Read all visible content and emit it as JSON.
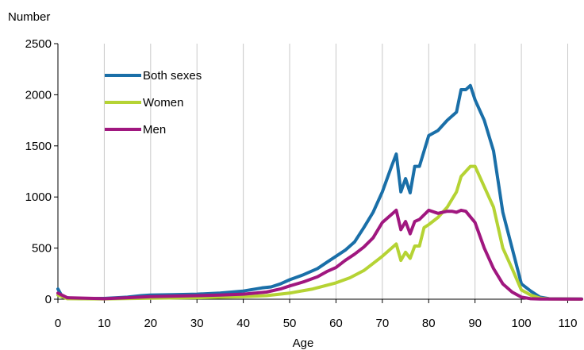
{
  "chart_data": {
    "type": "line",
    "title": "",
    "ylabel": "Number",
    "xlabel": "Age",
    "xlim": [
      0,
      113
    ],
    "ylim": [
      0,
      2500
    ],
    "x_ticks": [
      0,
      10,
      20,
      30,
      40,
      50,
      60,
      70,
      80,
      90,
      100,
      110
    ],
    "y_ticks": [
      0,
      500,
      1000,
      1500,
      2000,
      2500
    ],
    "grid": "vertical",
    "legend_position": "top-left",
    "series": [
      {
        "name": "Both sexes",
        "color": "#1a6fa8",
        "points": [
          [
            0,
            100
          ],
          [
            1,
            20
          ],
          [
            3,
            10
          ],
          [
            5,
            5
          ],
          [
            10,
            8
          ],
          [
            15,
            20
          ],
          [
            18,
            35
          ],
          [
            20,
            40
          ],
          [
            25,
            45
          ],
          [
            30,
            50
          ],
          [
            35,
            60
          ],
          [
            40,
            80
          ],
          [
            44,
            110
          ],
          [
            46,
            120
          ],
          [
            48,
            150
          ],
          [
            50,
            190
          ],
          [
            53,
            240
          ],
          [
            56,
            300
          ],
          [
            58,
            360
          ],
          [
            60,
            420
          ],
          [
            62,
            480
          ],
          [
            64,
            560
          ],
          [
            66,
            700
          ],
          [
            68,
            850
          ],
          [
            70,
            1050
          ],
          [
            72,
            1300
          ],
          [
            73,
            1420
          ],
          [
            74,
            1050
          ],
          [
            75,
            1180
          ],
          [
            76,
            1040
          ],
          [
            77,
            1300
          ],
          [
            78,
            1300
          ],
          [
            80,
            1600
          ],
          [
            82,
            1650
          ],
          [
            84,
            1750
          ],
          [
            86,
            1830
          ],
          [
            87,
            2050
          ],
          [
            88,
            2050
          ],
          [
            89,
            2090
          ],
          [
            90,
            1950
          ],
          [
            92,
            1750
          ],
          [
            94,
            1450
          ],
          [
            96,
            850
          ],
          [
            98,
            500
          ],
          [
            100,
            150
          ],
          [
            102,
            80
          ],
          [
            104,
            20
          ],
          [
            106,
            5
          ],
          [
            113,
            2
          ]
        ]
      },
      {
        "name": "Women",
        "color": "#b5d334",
        "points": [
          [
            0,
            40
          ],
          [
            2,
            5
          ],
          [
            10,
            3
          ],
          [
            20,
            10
          ],
          [
            30,
            15
          ],
          [
            40,
            25
          ],
          [
            45,
            35
          ],
          [
            50,
            60
          ],
          [
            55,
            100
          ],
          [
            60,
            160
          ],
          [
            63,
            210
          ],
          [
            66,
            280
          ],
          [
            68,
            350
          ],
          [
            70,
            420
          ],
          [
            72,
            500
          ],
          [
            73,
            540
          ],
          [
            74,
            380
          ],
          [
            75,
            460
          ],
          [
            76,
            400
          ],
          [
            77,
            520
          ],
          [
            78,
            520
          ],
          [
            79,
            700
          ],
          [
            80,
            730
          ],
          [
            82,
            800
          ],
          [
            84,
            900
          ],
          [
            86,
            1050
          ],
          [
            87,
            1200
          ],
          [
            89,
            1300
          ],
          [
            90,
            1300
          ],
          [
            92,
            1100
          ],
          [
            94,
            900
          ],
          [
            96,
            500
          ],
          [
            98,
            300
          ],
          [
            100,
            90
          ],
          [
            102,
            40
          ],
          [
            104,
            10
          ],
          [
            106,
            3
          ],
          [
            113,
            1
          ]
        ]
      },
      {
        "name": "Men",
        "color": "#a0177f",
        "points": [
          [
            0,
            60
          ],
          [
            2,
            15
          ],
          [
            10,
            5
          ],
          [
            15,
            15
          ],
          [
            20,
            25
          ],
          [
            25,
            30
          ],
          [
            30,
            35
          ],
          [
            35,
            40
          ],
          [
            40,
            50
          ],
          [
            45,
            70
          ],
          [
            48,
            100
          ],
          [
            50,
            130
          ],
          [
            53,
            170
          ],
          [
            56,
            220
          ],
          [
            58,
            270
          ],
          [
            60,
            310
          ],
          [
            62,
            380
          ],
          [
            64,
            440
          ],
          [
            66,
            510
          ],
          [
            68,
            600
          ],
          [
            70,
            750
          ],
          [
            72,
            830
          ],
          [
            73,
            870
          ],
          [
            74,
            680
          ],
          [
            75,
            760
          ],
          [
            76,
            640
          ],
          [
            77,
            760
          ],
          [
            78,
            780
          ],
          [
            80,
            870
          ],
          [
            82,
            840
          ],
          [
            84,
            860
          ],
          [
            85,
            860
          ],
          [
            86,
            850
          ],
          [
            87,
            870
          ],
          [
            88,
            860
          ],
          [
            90,
            750
          ],
          [
            92,
            500
          ],
          [
            94,
            300
          ],
          [
            96,
            150
          ],
          [
            98,
            70
          ],
          [
            100,
            20
          ],
          [
            102,
            5
          ],
          [
            104,
            2
          ],
          [
            113,
            1
          ]
        ]
      }
    ]
  }
}
